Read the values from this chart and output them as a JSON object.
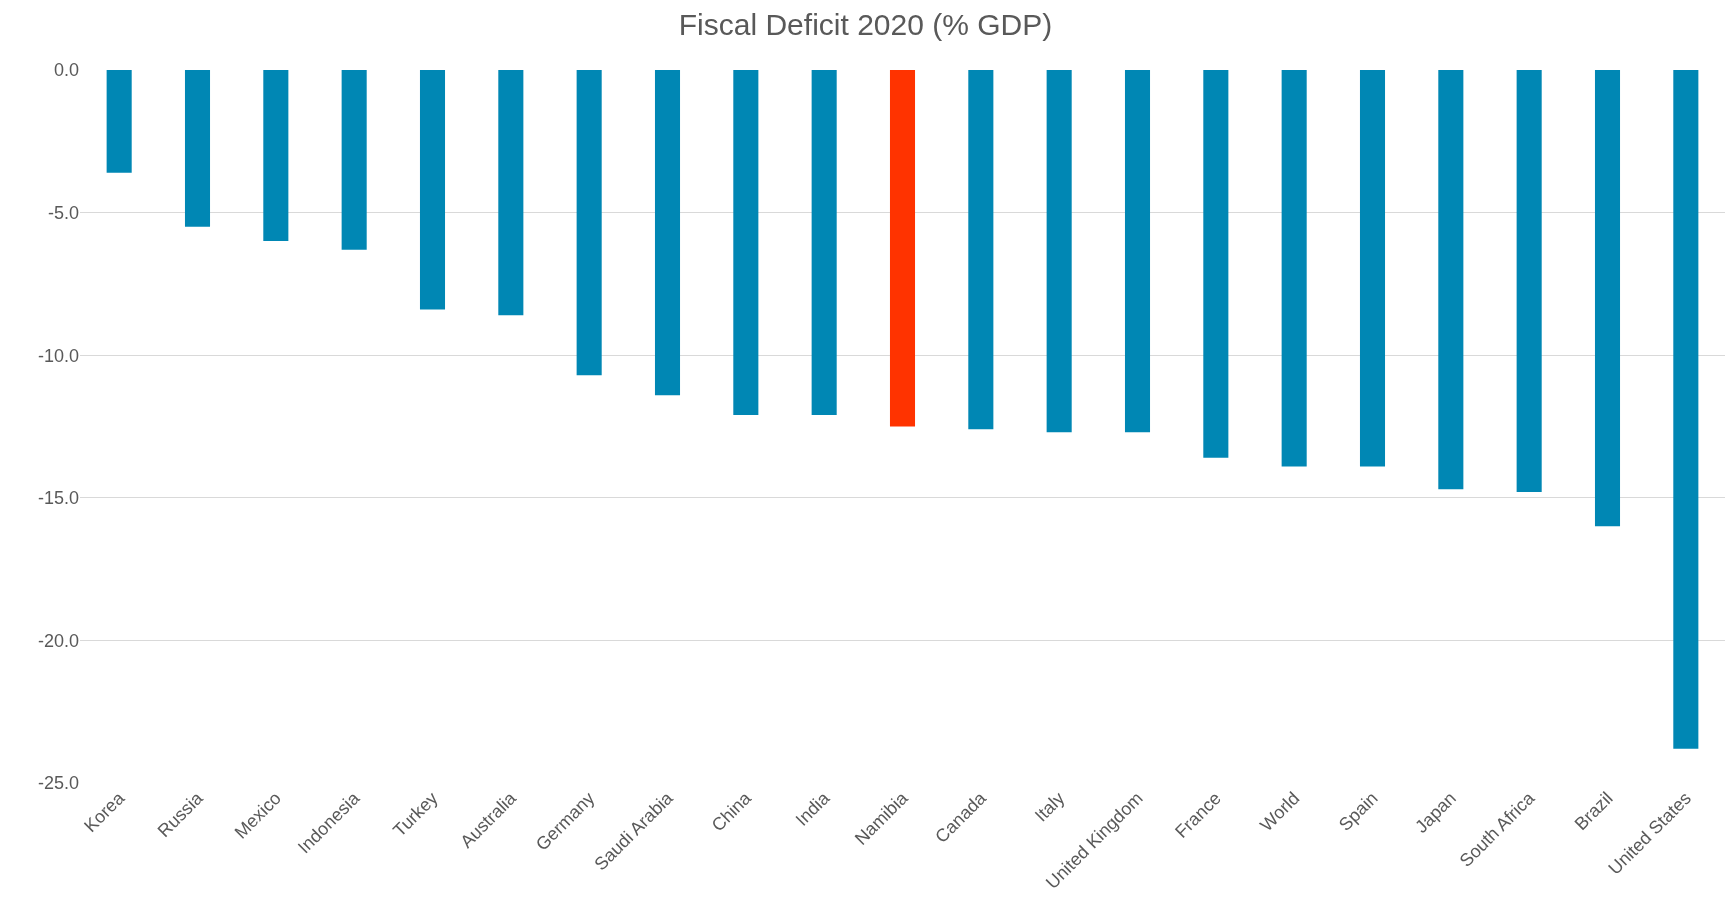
{
  "chart_data": {
    "type": "bar",
    "title": "Fiscal Deficit 2020 (% GDP)",
    "categories": [
      "Korea",
      "Russia",
      "Mexico",
      "Indonesia",
      "Turkey",
      "Australia",
      "Germany",
      "Saudi Arabia",
      "China",
      "India",
      "Namibia",
      "Canada",
      "Italy",
      "United Kingdom",
      "France",
      "World",
      "Spain",
      "Japan",
      "South Africa",
      "Brazil",
      "United States"
    ],
    "values": [
      -3.6,
      -5.5,
      -6.0,
      -6.3,
      -8.4,
      -8.6,
      -10.7,
      -11.4,
      -12.1,
      -12.1,
      -12.5,
      -12.6,
      -12.7,
      -12.7,
      -13.6,
      -13.9,
      -13.9,
      -14.7,
      -14.8,
      -16.0,
      -23.8
    ],
    "colors": [
      "#0087b4",
      "#0087b4",
      "#0087b4",
      "#0087b4",
      "#0087b4",
      "#0087b4",
      "#0087b4",
      "#0087b4",
      "#0087b4",
      "#0087b4",
      "#ff3300",
      "#0087b4",
      "#0087b4",
      "#0087b4",
      "#0087b4",
      "#0087b4",
      "#0087b4",
      "#0087b4",
      "#0087b4",
      "#0087b4",
      "#0087b4"
    ],
    "ylim": [
      -25,
      0
    ],
    "yticks": [
      {
        "value": 0,
        "label": "0.0"
      },
      {
        "value": -5,
        "label": "-5.0"
      },
      {
        "value": -10,
        "label": "-10.0"
      },
      {
        "value": -15,
        "label": "-15.0"
      },
      {
        "value": -20,
        "label": "-20.0"
      },
      {
        "value": -25,
        "label": "-25.0"
      }
    ],
    "grid": "y"
  }
}
